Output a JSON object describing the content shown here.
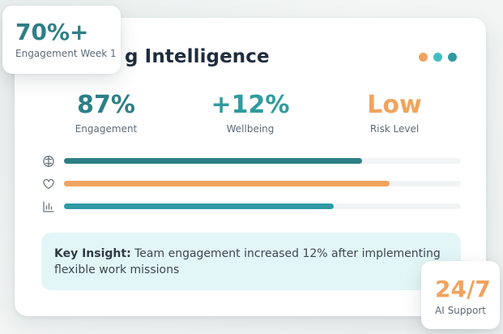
{
  "card": {
    "title": "g Intelligence",
    "window_dots": [
      {
        "color": "#f0a35e"
      },
      {
        "color": "#3fbfc2"
      },
      {
        "color": "#2e9aa3"
      }
    ]
  },
  "metrics": [
    {
      "value": "87%",
      "label": "Engagement",
      "color": "#2e7f86"
    },
    {
      "value": "+12%",
      "label": "Wellbeing",
      "color": "#2f9b9e"
    },
    {
      "value": "Low",
      "label": "Risk Level",
      "color": "#f0a35e"
    }
  ],
  "bars": [
    {
      "icon": "brain-icon",
      "level": 0.75,
      "color": "#2e7f86"
    },
    {
      "icon": "heart-icon",
      "level": 0.82,
      "color": "#f0a35e"
    },
    {
      "icon": "bar-chart-icon",
      "level": 0.68,
      "color": "#2e9aa3"
    }
  ],
  "insight": {
    "label": "Key Insight:",
    "text": " Team engagement increased 12% after implementing flexible work missions"
  },
  "badge_top": {
    "value": "70%+",
    "label": "Engagement Week 1",
    "color": "#2e7f86"
  },
  "badge_bottom": {
    "value": "24/7",
    "label": "AI Support",
    "color": "#f0a35e"
  }
}
